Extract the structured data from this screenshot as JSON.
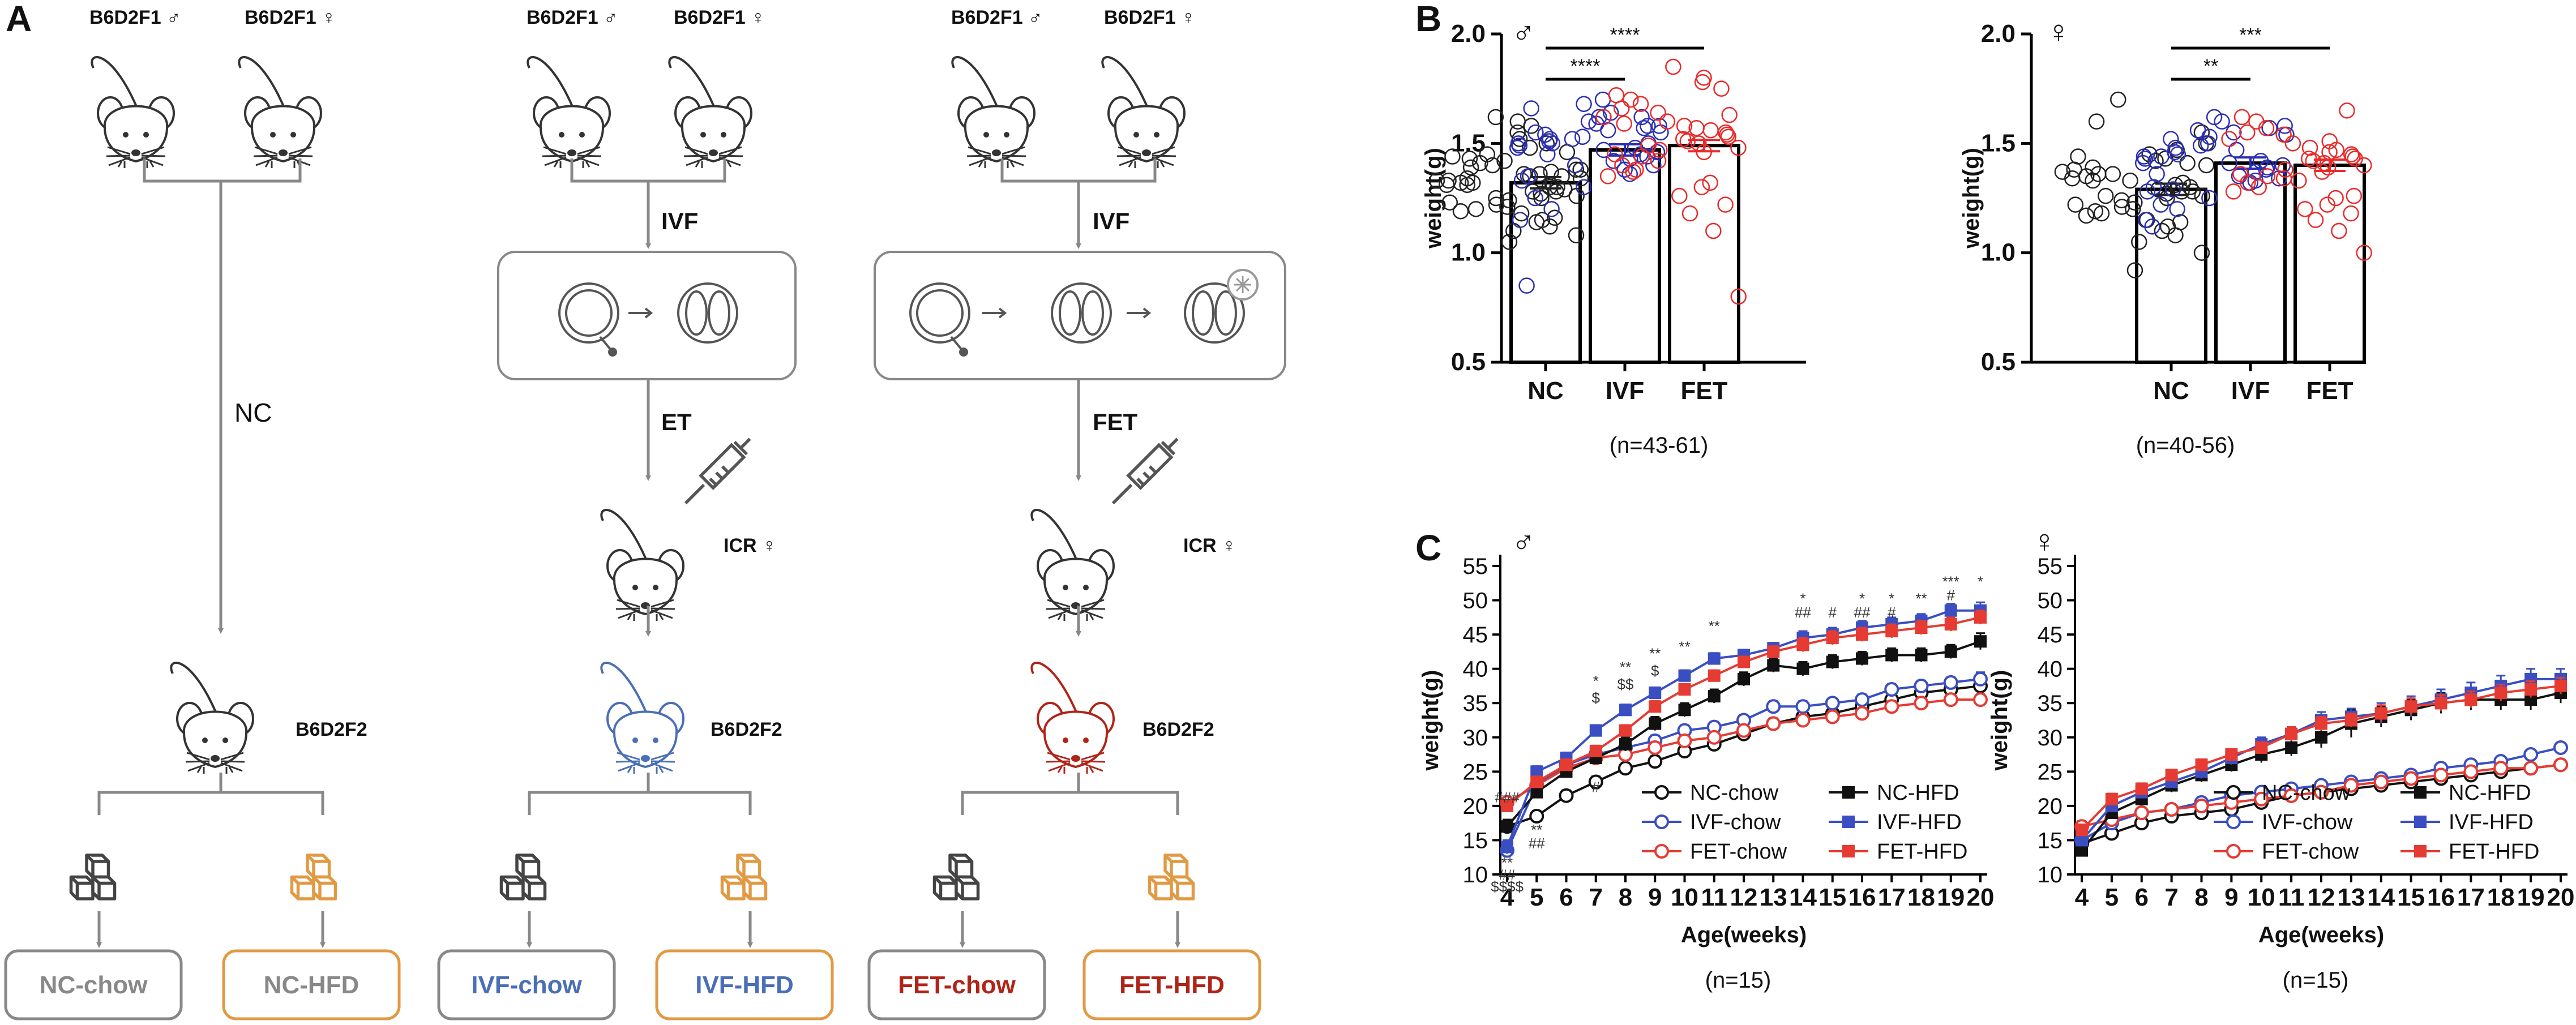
{
  "colors": {
    "ivf_blue": "#4a6fb5",
    "fet_red": "#b02418",
    "hfd_orange": "#e19a44",
    "chow_gray": "#555555",
    "scatter_nc": "#222222",
    "scatter_ivf": "#2b2fb2",
    "scatter_fet": "#ea2a2a",
    "line_ivf": "#3a4ec2",
    "line_fet": "#e53b32"
  },
  "panel_a": {
    "letter": "A",
    "col_nc": {
      "male_label": "B6D2F1 ♂",
      "female_label": "B6D2F1 ♀",
      "step_label": "NC",
      "offspring_label": "B6D2F2",
      "box_chow": "NC-chow",
      "box_hfd": "NC-HFD"
    },
    "col_ivf": {
      "male_label": "B6D2F1 ♂",
      "female_label": "B6D2F1 ♀",
      "step1_label": "IVF",
      "step2_label": "ET",
      "recipient_label": "ICR ♀",
      "offspring_label": "B6D2F2",
      "box_chow": "IVF-chow",
      "box_hfd": "IVF-HFD"
    },
    "col_fet": {
      "male_label": "B6D2F1 ♂",
      "female_label": "B6D2F1 ♀",
      "step1_label": "IVF",
      "step2_label": "FET",
      "recipient_label": "ICR ♀",
      "offspring_label": "B6D2F2",
      "box_chow": "FET-chow",
      "box_hfd": "FET-HFD"
    }
  },
  "chart_data": [
    {
      "id": "B-male",
      "panel_letter": "B",
      "sex_symbol": "♂",
      "type": "bar",
      "categories": [
        "NC",
        "IVF",
        "FET"
      ],
      "values": [
        1.32,
        1.47,
        1.49
      ],
      "ylabel": "weight(g)",
      "ylim": [
        0.5,
        2.0
      ],
      "yticks": [
        "0.5",
        "1.0",
        "1.5",
        "2.0"
      ],
      "n_label": "(n=43-61)",
      "significance": [
        {
          "pair": [
            "NC",
            "IVF"
          ],
          "label": "****"
        },
        {
          "pair": [
            "NC",
            "FET"
          ],
          "label": "****"
        }
      ],
      "points": {
        "NC": [
          1.05,
          1.08,
          1.1,
          1.12,
          1.14,
          1.15,
          1.16,
          1.18,
          1.19,
          1.2,
          1.21,
          1.22,
          1.23,
          1.24,
          1.25,
          1.25,
          1.26,
          1.27,
          1.28,
          1.28,
          1.29,
          1.3,
          1.3,
          1.31,
          1.31,
          1.32,
          1.32,
          1.33,
          1.33,
          1.34,
          1.34,
          1.35,
          1.35,
          1.36,
          1.36,
          1.37,
          1.38,
          1.38,
          1.39,
          1.4,
          1.41,
          1.42,
          1.43,
          1.44,
          1.45,
          1.46,
          1.48,
          1.5,
          1.52,
          1.55,
          1.58,
          1.6,
          1.62
        ],
        "IVF": [
          0.85,
          1.15,
          1.2,
          1.25,
          1.3,
          1.33,
          1.35,
          1.38,
          1.4,
          1.42,
          1.43,
          1.45,
          1.46,
          1.47,
          1.48,
          1.49,
          1.5,
          1.5,
          1.51,
          1.52,
          1.53,
          1.54,
          1.55,
          1.56,
          1.57,
          1.58,
          1.59,
          1.6,
          1.62,
          1.64,
          1.66,
          1.68,
          1.55,
          1.45,
          1.4,
          1.52,
          1.48,
          1.36,
          1.58,
          1.62,
          1.44,
          1.5,
          1.7
        ],
        "FET": [
          0.8,
          1.1,
          1.18,
          1.22,
          1.26,
          1.3,
          1.32,
          1.35,
          1.37,
          1.4,
          1.42,
          1.44,
          1.45,
          1.47,
          1.48,
          1.5,
          1.51,
          1.52,
          1.54,
          1.55,
          1.56,
          1.58,
          1.6,
          1.62,
          1.64,
          1.66,
          1.68,
          1.7,
          1.72,
          1.75,
          1.78,
          1.8,
          1.85,
          1.46,
          1.53,
          1.57,
          1.63,
          1.38,
          1.49,
          1.59
        ]
      }
    },
    {
      "id": "B-female",
      "sex_symbol": "♀",
      "type": "bar",
      "categories": [
        "NC",
        "IVF",
        "FET"
      ],
      "values": [
        1.29,
        1.41,
        1.4
      ],
      "ylabel": "weight(g)",
      "ylim": [
        0.5,
        2.0
      ],
      "yticks": [
        "0.5",
        "1.0",
        "1.5",
        "2.0"
      ],
      "n_label": "(n=40-56)",
      "significance": [
        {
          "pair": [
            "NC",
            "IVF"
          ],
          "label": "**"
        },
        {
          "pair": [
            "NC",
            "FET"
          ],
          "label": "***"
        }
      ],
      "points": {
        "NC": [
          0.92,
          1.0,
          1.05,
          1.08,
          1.1,
          1.12,
          1.14,
          1.15,
          1.17,
          1.18,
          1.2,
          1.21,
          1.22,
          1.23,
          1.24,
          1.25,
          1.26,
          1.27,
          1.28,
          1.29,
          1.3,
          1.31,
          1.32,
          1.33,
          1.34,
          1.35,
          1.36,
          1.37,
          1.38,
          1.39,
          1.4,
          1.41,
          1.42,
          1.43,
          1.45,
          1.47,
          1.5,
          1.55,
          1.6,
          1.7,
          1.26,
          1.33,
          1.19,
          1.44,
          1.36,
          1.28
        ],
        "IVF": [
          1.12,
          1.15,
          1.2,
          1.22,
          1.25,
          1.28,
          1.3,
          1.32,
          1.34,
          1.35,
          1.37,
          1.38,
          1.4,
          1.41,
          1.42,
          1.43,
          1.44,
          1.45,
          1.46,
          1.48,
          1.5,
          1.52,
          1.54,
          1.55,
          1.57,
          1.58,
          1.6,
          1.62,
          1.39,
          1.47,
          1.36,
          1.53,
          1.44,
          1.29,
          1.49,
          1.56,
          1.41,
          1.33
        ],
        "FET": [
          1.0,
          1.1,
          1.15,
          1.18,
          1.2,
          1.22,
          1.25,
          1.28,
          1.3,
          1.32,
          1.34,
          1.35,
          1.36,
          1.38,
          1.4,
          1.41,
          1.42,
          1.43,
          1.44,
          1.45,
          1.47,
          1.48,
          1.5,
          1.52,
          1.54,
          1.55,
          1.57,
          1.6,
          1.62,
          1.65,
          1.39,
          1.46,
          1.33,
          1.51,
          1.26,
          1.37,
          1.43
        ]
      }
    },
    {
      "id": "C-male",
      "panel_letter": "C",
      "sex_symbol": "♂",
      "type": "line",
      "x": [
        4,
        5,
        6,
        7,
        8,
        9,
        10,
        11,
        12,
        13,
        14,
        15,
        16,
        17,
        18,
        19,
        20
      ],
      "xlabel": "Age(weeks)",
      "ylabel": "weight(g)",
      "ylim": [
        10,
        55
      ],
      "yticks": [
        "10",
        "15",
        "20",
        "25",
        "30",
        "35",
        "40",
        "45",
        "50",
        "55"
      ],
      "n_label": "(n=15)",
      "series": [
        {
          "name": "NC-chow",
          "color": "#111111",
          "marker": "open-circle",
          "values": [
            17,
            18.5,
            21.5,
            23.5,
            25.5,
            26.5,
            28,
            29,
            30.5,
            32,
            33,
            33.5,
            34.5,
            35.5,
            36.5,
            37,
            37.5
          ],
          "err": [
            1.0,
            0.8,
            0.8,
            0.8,
            0.8,
            0.8,
            0.8,
            0.8,
            0.8,
            0.8,
            0.8,
            0.8,
            0.8,
            0.8,
            0.8,
            0.8,
            0.8
          ]
        },
        {
          "name": "IVF-chow",
          "color": "#3a4ec2",
          "marker": "open-circle",
          "values": [
            13.5,
            23,
            26,
            27.5,
            28.5,
            29.5,
            31,
            31.5,
            32.5,
            34.5,
            34.5,
            35,
            35.5,
            37,
            37.5,
            38,
            38.5
          ],
          "err": [
            1.0,
            0.8,
            0.8,
            0.8,
            0.8,
            0.8,
            0.8,
            0.8,
            0.8,
            0.8,
            0.8,
            0.8,
            0.8,
            0.8,
            0.8,
            0.8,
            1.0
          ]
        },
        {
          "name": "FET-chow",
          "color": "#e53b32",
          "marker": "open-circle",
          "values": [
            20.5,
            23,
            25.5,
            27,
            27.5,
            28.5,
            29.5,
            30,
            31,
            32,
            32.5,
            33,
            33.5,
            34.5,
            35,
            35.5,
            35.5
          ],
          "err": [
            0.8,
            0.8,
            0.8,
            0.8,
            0.8,
            0.8,
            0.8,
            0.8,
            0.8,
            0.8,
            0.8,
            0.8,
            0.8,
            0.8,
            0.8,
            0.8,
            0.8
          ]
        },
        {
          "name": "NC-HFD",
          "color": "#111111",
          "marker": "filled-square",
          "values": [
            17,
            22,
            25,
            27,
            29,
            32,
            34,
            36,
            38.5,
            40.5,
            40,
            41,
            41.5,
            42,
            42,
            42.5,
            44
          ],
          "err": [
            1.0,
            0.8,
            0.8,
            0.8,
            1.0,
            1.0,
            1.0,
            1.0,
            1.0,
            1.0,
            1.0,
            1.0,
            1.0,
            1.0,
            1.0,
            1.0,
            1.2
          ]
        },
        {
          "name": "IVF-HFD",
          "color": "#3a4ec2",
          "marker": "filled-square",
          "values": [
            14,
            25,
            27,
            31,
            34,
            36.5,
            39,
            41.5,
            42,
            43,
            44.5,
            45,
            46,
            46.5,
            47,
            48.5,
            48.5
          ],
          "err": [
            1.0,
            0.8,
            0.8,
            0.8,
            0.8,
            0.8,
            0.8,
            0.8,
            0.8,
            0.8,
            1.0,
            1.0,
            1.0,
            1.0,
            1.0,
            1.0,
            1.2
          ]
        },
        {
          "name": "FET-HFD",
          "color": "#e53b32",
          "marker": "filled-square",
          "values": [
            20,
            23.5,
            26,
            28,
            31,
            34.5,
            37,
            39,
            41,
            42.5,
            43.5,
            44.5,
            45,
            45.5,
            46,
            46.5,
            47.5
          ],
          "err": [
            0.8,
            0.8,
            0.8,
            0.8,
            0.8,
            0.8,
            0.8,
            0.8,
            0.8,
            0.8,
            1.0,
            1.0,
            1.0,
            1.0,
            1.0,
            1.0,
            1.0
          ]
        }
      ],
      "annotations": [
        {
          "x": 4,
          "y": 20.5,
          "text": "###"
        },
        {
          "x": 4,
          "y": 11.0,
          "text": "**"
        },
        {
          "x": 4,
          "y": 9.2,
          "text": "##"
        },
        {
          "x": 4,
          "y": 7.5,
          "text": "$$$$"
        },
        {
          "x": 5,
          "y": 15.8,
          "text": "**"
        },
        {
          "x": 5,
          "y": 13.8,
          "text": "##"
        },
        {
          "x": 7,
          "y": 22.0,
          "text": "#"
        },
        {
          "x": 7,
          "y": 37.5,
          "text": "*"
        },
        {
          "x": 7,
          "y": 35.0,
          "text": "$"
        },
        {
          "x": 8,
          "y": 39.5,
          "text": "**"
        },
        {
          "x": 8,
          "y": 37.0,
          "text": "$$"
        },
        {
          "x": 9,
          "y": 41.5,
          "text": "**"
        },
        {
          "x": 9,
          "y": 39.0,
          "text": "$"
        },
        {
          "x": 10,
          "y": 42.5,
          "text": "**"
        },
        {
          "x": 11,
          "y": 45.5,
          "text": "**"
        },
        {
          "x": 14,
          "y": 49.5,
          "text": "*"
        },
        {
          "x": 14,
          "y": 47.5,
          "text": "##"
        },
        {
          "x": 15,
          "y": 47.5,
          "text": "#"
        },
        {
          "x": 16,
          "y": 49.5,
          "text": "*"
        },
        {
          "x": 16,
          "y": 47.5,
          "text": "##"
        },
        {
          "x": 17,
          "y": 49.5,
          "text": "*"
        },
        {
          "x": 17,
          "y": 47.5,
          "text": "#"
        },
        {
          "x": 18,
          "y": 49.5,
          "text": "**"
        },
        {
          "x": 19,
          "y": 52.0,
          "text": "***"
        },
        {
          "x": 19,
          "y": 50.0,
          "text": "#"
        },
        {
          "x": 20,
          "y": 52.0,
          "text": "*"
        }
      ]
    },
    {
      "id": "C-female",
      "sex_symbol": "♀",
      "type": "line",
      "x": [
        4,
        5,
        6,
        7,
        8,
        9,
        10,
        11,
        12,
        13,
        14,
        15,
        16,
        17,
        18,
        19,
        20
      ],
      "xlabel": "Age(weeks)",
      "ylabel": "weight(g)",
      "ylim": [
        10,
        55
      ],
      "yticks": [
        "10",
        "15",
        "20",
        "25",
        "30",
        "35",
        "40",
        "45",
        "50",
        "55"
      ],
      "n_label": "(n=15)",
      "series": [
        {
          "name": "NC-chow",
          "color": "#111111",
          "marker": "open-circle",
          "values": [
            14.5,
            16,
            17.5,
            18.5,
            19,
            19.5,
            20.5,
            21.5,
            22,
            22.5,
            23,
            23.5,
            24,
            24.5,
            25,
            25.5,
            26
          ],
          "err": [
            0.8,
            0.6,
            0.6,
            0.6,
            0.6,
            0.6,
            0.6,
            0.6,
            0.6,
            0.6,
            0.6,
            0.6,
            0.6,
            0.6,
            0.6,
            0.6,
            0.6
          ]
        },
        {
          "name": "IVF-chow",
          "color": "#3a4ec2",
          "marker": "open-circle",
          "values": [
            15,
            17.5,
            19,
            19.5,
            20.5,
            21.5,
            22,
            22.5,
            23,
            23.5,
            24,
            24.5,
            25.5,
            26,
            26.5,
            27.5,
            28.5
          ],
          "err": [
            0.8,
            0.6,
            0.6,
            0.6,
            0.6,
            0.6,
            0.6,
            0.6,
            0.6,
            0.6,
            0.6,
            0.6,
            0.6,
            0.6,
            0.6,
            0.6,
            0.6
          ]
        },
        {
          "name": "FET-chow",
          "color": "#e53b32",
          "marker": "open-circle",
          "values": [
            17,
            18,
            19,
            19.5,
            20,
            20.5,
            21,
            21.5,
            22,
            23,
            23.5,
            24,
            24.5,
            25,
            25.5,
            25.5,
            26
          ],
          "err": [
            0.8,
            0.6,
            0.6,
            0.6,
            0.6,
            0.6,
            0.6,
            0.6,
            0.6,
            0.6,
            0.6,
            0.6,
            0.6,
            0.6,
            0.6,
            0.6,
            0.6
          ]
        },
        {
          "name": "NC-HFD",
          "color": "#111111",
          "marker": "filled-square",
          "values": [
            13.5,
            19,
            21,
            23,
            24.5,
            26,
            27.5,
            28.5,
            30,
            32,
            33,
            34,
            35,
            35.5,
            35.5,
            35.5,
            36.5
          ],
          "err": [
            0.8,
            0.8,
            0.8,
            1.0,
            1.0,
            1.0,
            1.2,
            1.2,
            1.5,
            2.0,
            1.5,
            1.5,
            1.5,
            1.5,
            1.5,
            1.5,
            1.5
          ]
        },
        {
          "name": "IVF-HFD",
          "color": "#3a4ec2",
          "marker": "filled-square",
          "values": [
            15,
            20,
            22,
            23.5,
            25,
            27,
            29,
            30.5,
            32.5,
            33,
            33.5,
            34.5,
            35.5,
            36.5,
            37.5,
            38.5,
            38.5
          ],
          "err": [
            0.8,
            0.8,
            0.8,
            0.8,
            1.0,
            1.0,
            1.0,
            1.0,
            1.2,
            1.2,
            1.5,
            1.5,
            1.5,
            1.5,
            1.5,
            1.5,
            1.5
          ]
        },
        {
          "name": "FET-HFD",
          "color": "#e53b32",
          "marker": "filled-square",
          "values": [
            16.5,
            21,
            22.5,
            24.5,
            26,
            27.5,
            28.5,
            30.5,
            32,
            32.5,
            33.5,
            34.5,
            35,
            35.5,
            36.5,
            37,
            37.5
          ],
          "err": [
            0.8,
            0.8,
            0.8,
            0.8,
            0.8,
            0.8,
            0.8,
            1.0,
            1.0,
            1.0,
            1.2,
            1.2,
            1.2,
            1.2,
            1.2,
            1.2,
            1.2
          ]
        }
      ],
      "annotations": []
    }
  ]
}
